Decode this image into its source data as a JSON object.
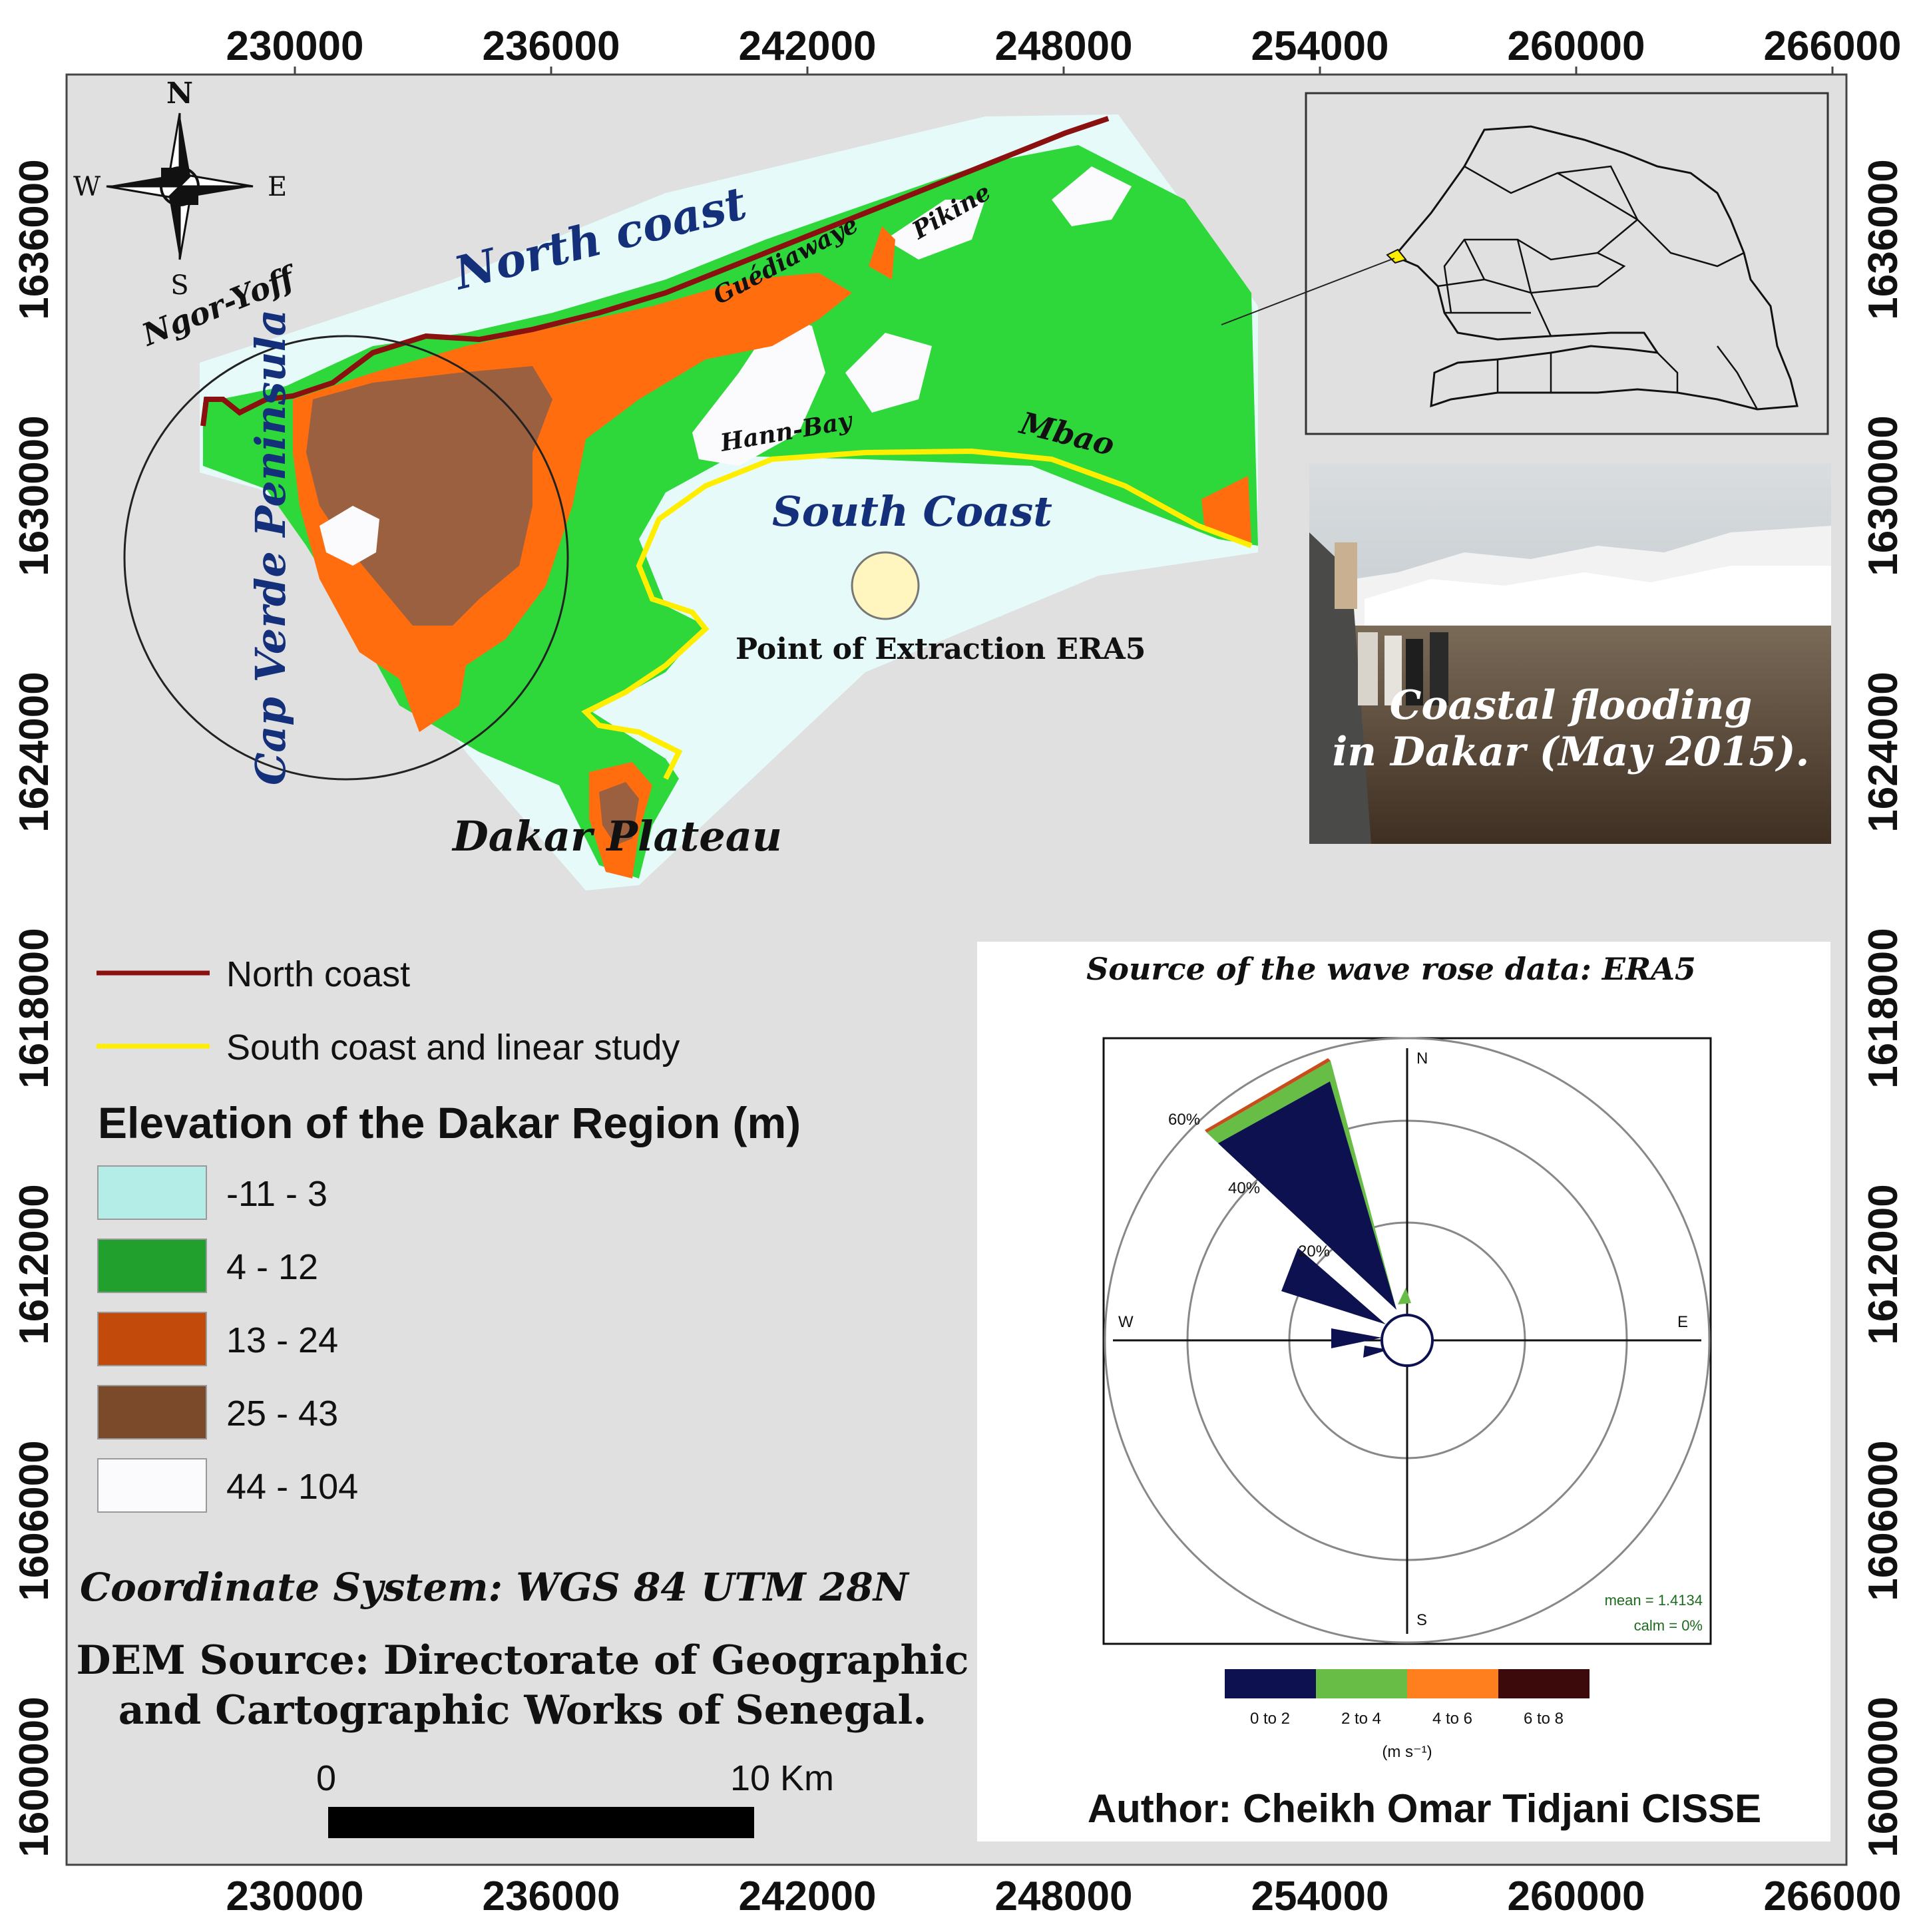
{
  "x_ticks": [
    "230000",
    "236000",
    "242000",
    "248000",
    "254000",
    "260000",
    "266000"
  ],
  "y_ticks": [
    "1636000",
    "1630000",
    "1624000",
    "1618000",
    "1612000",
    "1606000",
    "1600000"
  ],
  "compass": {
    "n": "N",
    "s": "S",
    "e": "E",
    "w": "W",
    "icon": "compass-rose-icon"
  },
  "places": {
    "ngor_yoff": "Ngor-Yoff",
    "north_coast": "North coast",
    "guediawaye": "Guédiawaye",
    "pikine": "Pikine",
    "hann_bay": "Hann-Bay",
    "mbao": "Mbao",
    "south_coast": "South Coast",
    "cap_verde": "Cap Verde Peninsula",
    "dakar_plateau": "Dakar Plateau",
    "extraction_point": "Point of Extraction ERA5"
  },
  "photo_caption": {
    "line1": "Coastal flooding",
    "line2": "in Dakar (May 2015)."
  },
  "legend": {
    "lines": [
      {
        "label": "North coast",
        "color": "#8b1010"
      },
      {
        "label": "South coast and linear study",
        "color": "#ffee00"
      }
    ],
    "title": "Elevation of the Dakar Region (m)",
    "classes": [
      {
        "label": "-11 - 3",
        "color": "#b4ede8"
      },
      {
        "label": "4 - 12",
        "color": "#21a02e"
      },
      {
        "label": "13 - 24",
        "color": "#c24a0a"
      },
      {
        "label": "25 - 43",
        "color": "#7b4a2a"
      },
      {
        "label": "44 - 104",
        "color": "#fbfbfd"
      }
    ]
  },
  "info": {
    "coord_system": "Coordinate System: WGS 84 UTM 28N",
    "dem_line1": "DEM Source: Directorate of Geographic",
    "dem_line2": "and Cartographic Works of Senegal."
  },
  "scalebar": {
    "start": "0",
    "end": "10 Km"
  },
  "rose": {
    "source": "Source of the wave rose data: ERA5",
    "ring_labels": [
      "20%",
      "40%",
      "60%"
    ],
    "dirs": {
      "n": "N",
      "s": "S",
      "e": "E",
      "w": "W"
    },
    "mean": "mean = 1.4134",
    "calm": "calm = 0%",
    "speed_bins": [
      {
        "label": "0 to 2",
        "color": "#0d1150"
      },
      {
        "label": "2 to 4",
        "color": "#67bd45"
      },
      {
        "label": "4 to 6",
        "color": "#ff7f1e"
      },
      {
        "label": "6 to 8",
        "color": "#3c0a0a"
      }
    ],
    "unit": "(m s⁻¹)"
  },
  "author": "Author: Cheikh Omar Tidjani CISSE",
  "colors": {
    "map_bg": "#e0e0e0",
    "sea": "#e6fafa",
    "green": "#2fd83a",
    "orange": "#ff6d0e",
    "brown": "#9a6040"
  }
}
